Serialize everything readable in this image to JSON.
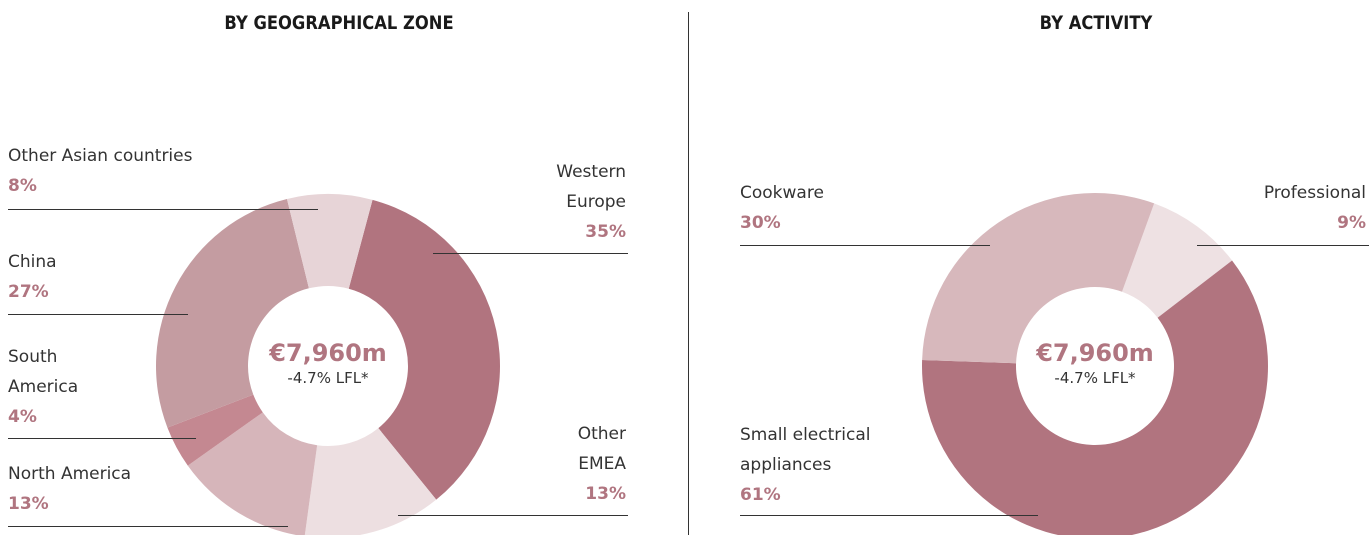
{
  "chart_data": [
    {
      "type": "pie",
      "title": "BY GEOGRAPHICAL ZONE",
      "center_value": "€7,960m",
      "center_sub": "-4.7% LFL*",
      "slices": [
        {
          "name": "Western Europe",
          "value": 35,
          "pct_label": "35%",
          "color": "#b1747f"
        },
        {
          "name": "Other EMEA",
          "value": 13,
          "pct_label": "13%",
          "color": "#eddfe1"
        },
        {
          "name": "North America",
          "value": 13,
          "pct_label": "13%",
          "color": "#d6b5ba"
        },
        {
          "name": "South America",
          "value": 4,
          "pct_label": "4%",
          "color": "#c48891"
        },
        {
          "name": "China",
          "value": 27,
          "pct_label": "27%",
          "color": "#c49ca1"
        },
        {
          "name": "Other Asian countries",
          "value": 8,
          "pct_label": "8%",
          "color": "#e7d4d7"
        }
      ],
      "label_lines": {
        "western_europe": [
          "Western",
          "Europe"
        ],
        "other_emea": [
          "Other",
          "EMEA"
        ],
        "south_america": [
          "South",
          "America"
        ]
      }
    },
    {
      "type": "pie",
      "title": "BY ACTIVITY",
      "center_value": "€7,960m",
      "center_sub": "-4.7% LFL*",
      "slices": [
        {
          "name": "Professional",
          "value": 9,
          "pct_label": "9%",
          "color": "#eee1e3"
        },
        {
          "name": "Small electrical appliances",
          "value": 61,
          "pct_label": "61%",
          "color": "#b1747f"
        },
        {
          "name": "Cookware",
          "value": 30,
          "pct_label": "30%",
          "color": "#d7b8bc"
        }
      ],
      "label_lines": {
        "small_electrical": [
          "Small electrical",
          "appliances"
        ]
      }
    }
  ]
}
